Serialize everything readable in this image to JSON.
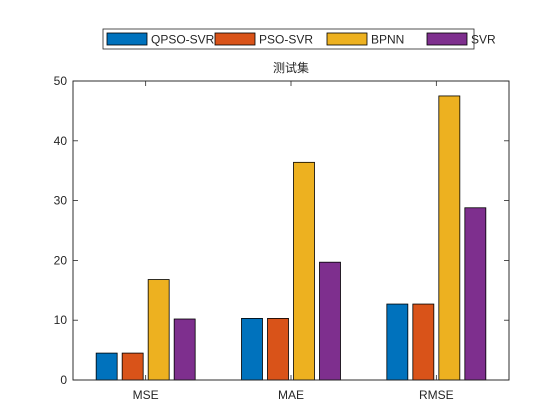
{
  "chart_data": {
    "type": "bar",
    "title": "测试集",
    "categories": [
      "MSE",
      "MAE",
      "RMSE"
    ],
    "series": [
      {
        "name": "QPSO-SVR",
        "color": "#0072BD",
        "values": [
          4.5,
          10.3,
          12.7
        ]
      },
      {
        "name": "PSO-SVR",
        "color": "#D95319",
        "values": [
          4.5,
          10.3,
          12.7
        ]
      },
      {
        "name": "BPNN",
        "color": "#EDB120",
        "values": [
          16.8,
          36.4,
          47.5
        ]
      },
      {
        "name": "SVR",
        "color": "#7E2F8E",
        "values": [
          10.2,
          19.7,
          28.8
        ]
      }
    ],
    "ylim": [
      0,
      50
    ],
    "yticks": [
      0,
      10,
      20,
      30,
      40,
      50
    ],
    "xlabel": "",
    "ylabel": "",
    "legend_position": "top, horizontal, outside plot",
    "grid": false
  }
}
